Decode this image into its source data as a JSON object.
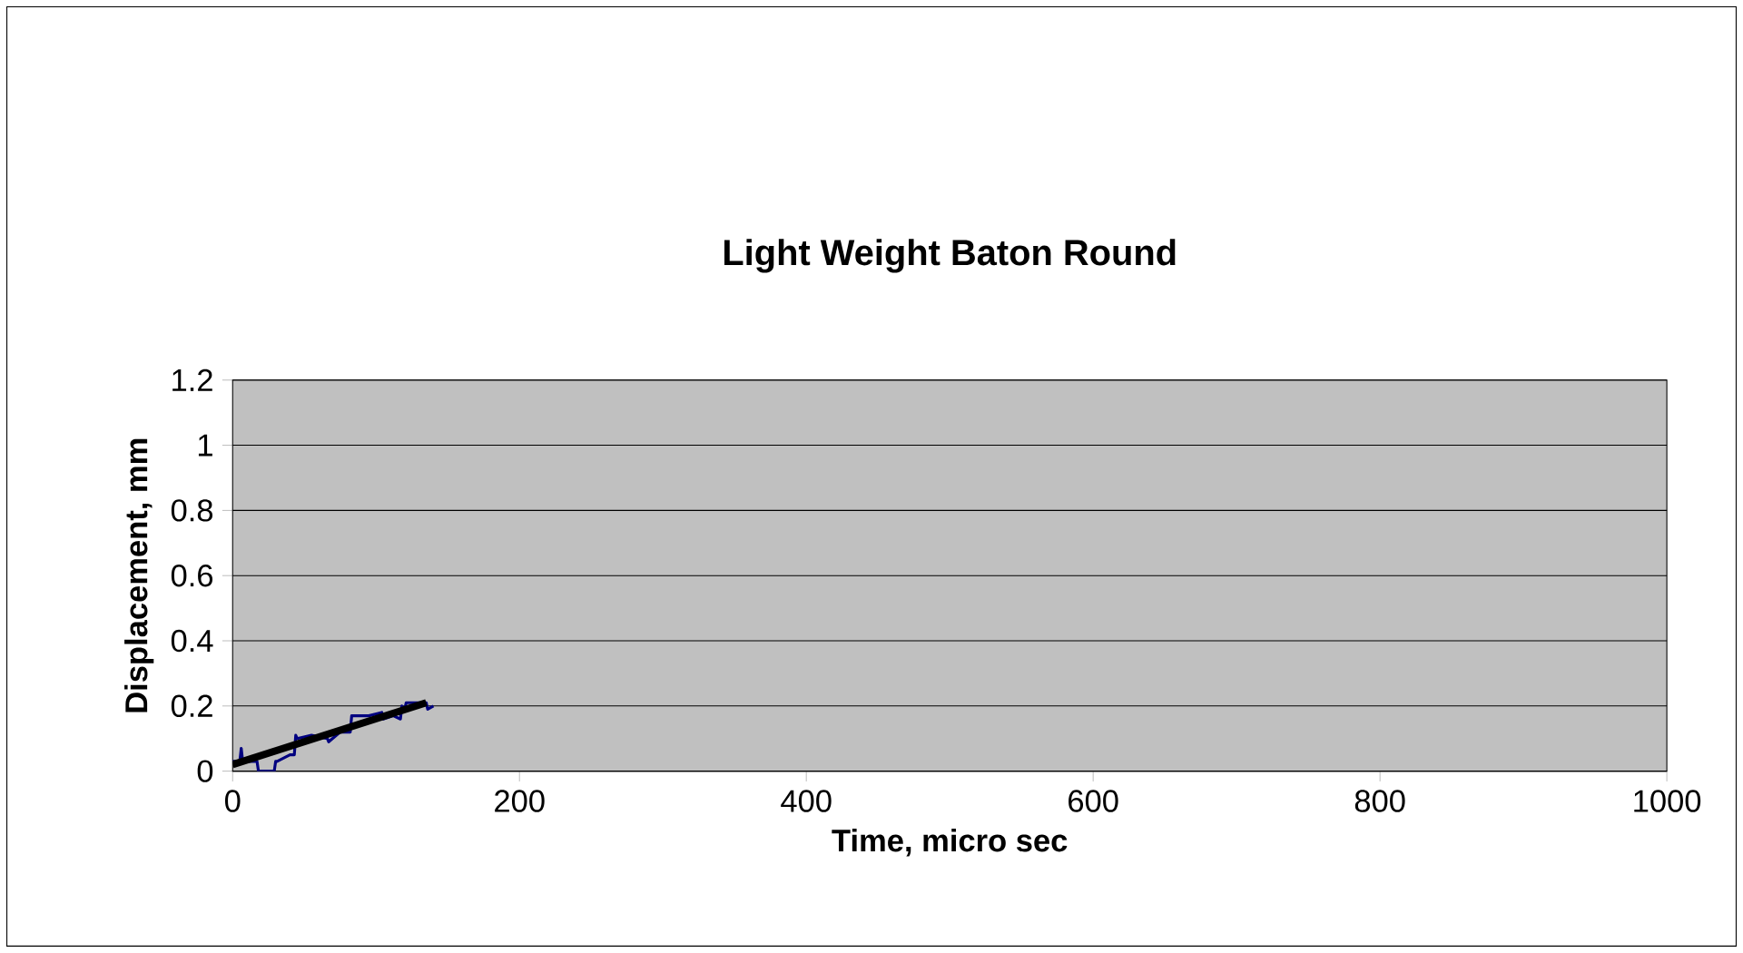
{
  "chart_data": {
    "type": "line",
    "title": "Light Weight Baton Round",
    "xlabel": "Time, micro sec",
    "ylabel": "Displacement, mm",
    "series": [
      {
        "color": "#000080",
        "x": [
          0,
          5,
          6,
          7,
          12,
          17,
          18,
          29,
          30,
          31,
          40,
          43,
          44,
          45,
          55,
          66,
          67,
          75,
          76,
          82,
          83,
          95,
          104,
          105,
          112,
          117,
          118,
          120,
          121,
          130,
          135,
          136,
          140
        ],
        "values": [
          0.03,
          0.03,
          0.07,
          0.03,
          0.03,
          0.03,
          0.0,
          0.0,
          0.03,
          0.03,
          0.05,
          0.05,
          0.11,
          0.1,
          0.11,
          0.1,
          0.09,
          0.12,
          0.12,
          0.12,
          0.17,
          0.17,
          0.18,
          0.16,
          0.17,
          0.16,
          0.2,
          0.19,
          0.21,
          0.21,
          0.21,
          0.19,
          0.2
        ]
      },
      {
        "color": "#000000",
        "x": [
          0,
          135
        ],
        "values": [
          0.02,
          0.21
        ]
      }
    ],
    "xlim": [
      0,
      1000
    ],
    "xticks": [
      0,
      200,
      400,
      600,
      800,
      1000
    ],
    "ylim": [
      0,
      1.2
    ],
    "yticks": [
      0,
      0.2,
      0.4,
      0.6,
      0.8,
      1,
      1.2
    ],
    "grid": "y",
    "marker": "none",
    "line_style": "solid"
  }
}
